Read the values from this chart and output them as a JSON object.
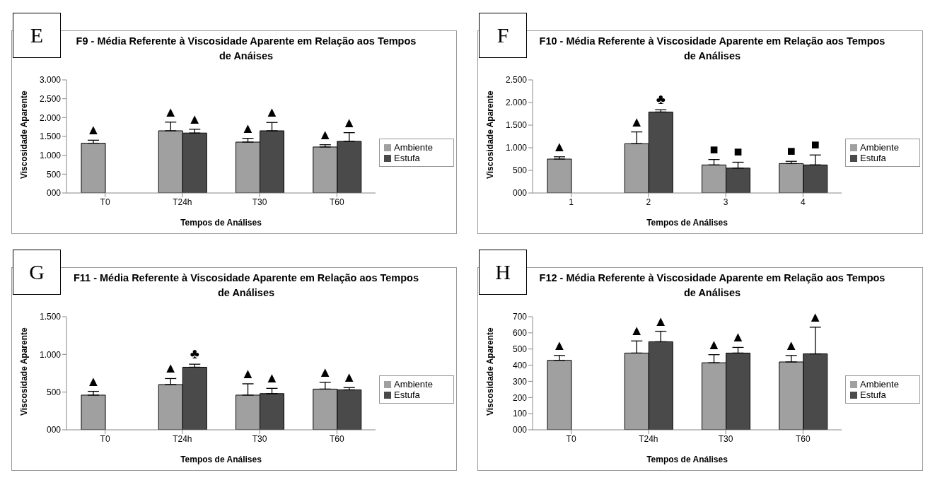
{
  "chart_data": [
    {
      "type": "bar",
      "title": "F9 - Média Referente à Viscosidade Aparente em Relação aos Tempos de Anáises",
      "xlabel": "Tempos de Análises",
      "ylabel": "Viscosidade Aparente",
      "annotations": [
        "E"
      ],
      "categories": [
        "T0",
        "T24h",
        "T30",
        "T60"
      ],
      "series": [
        {
          "name": "Ambiente",
          "color": "#a0a0a0",
          "values": [
            1320,
            1650,
            1350,
            1220
          ],
          "errors": [
            [
              1320,
              1400
            ],
            [
              1650,
              1880
            ],
            [
              1350,
              1450
            ],
            [
              1220,
              1280
            ]
          ],
          "value_labels": [
            "▲",
            "▲",
            "▲",
            "▲"
          ]
        },
        {
          "name": "Estufa",
          "color": "#4a4a4a",
          "values": [
            null,
            1590,
            1650,
            1370
          ],
          "errors": [
            null,
            [
              1590,
              1690
            ],
            [
              1650,
              1870
            ],
            [
              1370,
              1600
            ]
          ],
          "value_labels": [
            null,
            "▲",
            "▲",
            "▲"
          ]
        }
      ],
      "ylim": [
        0,
        3000
      ],
      "yticks": [
        {
          "value": 0,
          "label": "000"
        },
        500,
        {
          "value": 1000,
          "label": "1.000"
        },
        {
          "value": 1500,
          "label": "1.500"
        },
        {
          "value": 2000,
          "label": "2.000"
        },
        {
          "value": 2500,
          "label": "2.500"
        },
        {
          "value": 3000,
          "label": "3.000"
        }
      ],
      "grid": false,
      "legend": "right"
    },
    {
      "type": "bar",
      "title": "F10 - Média Referente à Viscosidade Aparente em Relação aos Tempos de Análises",
      "xlabel": "Tempos de Análises",
      "ylabel": "Viscosidade Aparente",
      "annotations": [
        "F"
      ],
      "categories": [
        "1",
        "2",
        "3",
        "4"
      ],
      "series": [
        {
          "name": "Ambiente",
          "color": "#a0a0a0",
          "values": [
            750,
            1090,
            620,
            650
          ],
          "errors": [
            [
              750,
              800
            ],
            [
              1090,
              1350
            ],
            [
              620,
              740
            ],
            [
              650,
              700
            ]
          ],
          "value_labels": [
            "▲",
            "▲",
            "■",
            "■"
          ]
        },
        {
          "name": "Estufa",
          "color": "#4a4a4a",
          "values": [
            null,
            1790,
            550,
            620
          ],
          "errors": [
            null,
            [
              1790,
              1840
            ],
            [
              550,
              680
            ],
            [
              620,
              840
            ]
          ],
          "value_labels": [
            null,
            "♣",
            "■",
            "■"
          ]
        }
      ],
      "ylim": [
        0,
        2500
      ],
      "yticks": [
        {
          "value": 0,
          "label": "000"
        },
        500,
        {
          "value": 1000,
          "label": "1.000"
        },
        {
          "value": 1500,
          "label": "1.500"
        },
        {
          "value": 2000,
          "label": "2.000"
        },
        {
          "value": 2500,
          "label": "2.500"
        }
      ],
      "grid": false,
      "legend": "right"
    },
    {
      "type": "bar",
      "title": "F11 - Média Referente à Viscosidade Aparente em Relação aos Tempos de Análises",
      "xlabel": "Tempos de Análises",
      "ylabel": "Viscosidade Aparente",
      "annotations": [
        "G"
      ],
      "categories": [
        "T0",
        "T24h",
        "T30",
        "T60"
      ],
      "series": [
        {
          "name": "Ambiente",
          "color": "#a0a0a0",
          "values": [
            460,
            600,
            460,
            540
          ],
          "errors": [
            [
              460,
              510
            ],
            [
              600,
              680
            ],
            [
              460,
              610
            ],
            [
              540,
              630
            ]
          ],
          "value_labels": [
            "▲",
            "▲",
            "▲",
            "▲"
          ]
        },
        {
          "name": "Estufa",
          "color": "#4a4a4a",
          "values": [
            null,
            830,
            480,
            530
          ],
          "errors": [
            null,
            [
              830,
              870
            ],
            [
              480,
              550
            ],
            [
              530,
              560
            ]
          ],
          "value_labels": [
            null,
            "♣",
            "▲",
            "▲"
          ]
        }
      ],
      "ylim": [
        0,
        1500
      ],
      "yticks": [
        {
          "value": 0,
          "label": "000"
        },
        500,
        {
          "value": 1000,
          "label": "1.000"
        },
        {
          "value": 1500,
          "label": "1.500"
        }
      ],
      "grid": false,
      "legend": "right"
    },
    {
      "type": "bar",
      "title": "F12 - Média Referente à Viscosidade Aparente em Relação aos Tempos de Análises",
      "xlabel": "Tempos de Análises",
      "ylabel": "Viscosidade Aparente",
      "annotations": [
        "H"
      ],
      "categories": [
        "T0",
        "T24h",
        "T30",
        "T60"
      ],
      "series": [
        {
          "name": "Ambiente",
          "color": "#a0a0a0",
          "values": [
            430,
            475,
            415,
            420
          ],
          "errors": [
            [
              430,
              460
            ],
            [
              475,
              550
            ],
            [
              415,
              465
            ],
            [
              420,
              460
            ]
          ],
          "value_labels": [
            "▲",
            "▲",
            "▲",
            "▲"
          ]
        },
        {
          "name": "Estufa",
          "color": "#4a4a4a",
          "values": [
            null,
            545,
            475,
            470
          ],
          "errors": [
            null,
            [
              545,
              610
            ],
            [
              475,
              510
            ],
            [
              470,
              635
            ]
          ],
          "value_labels": [
            null,
            "▲",
            "▲",
            "▲"
          ]
        }
      ],
      "ylim": [
        0,
        700
      ],
      "yticks": [
        {
          "value": 0,
          "label": "000"
        },
        100,
        200,
        300,
        400,
        500,
        600,
        700
      ],
      "grid": false,
      "legend": "right"
    }
  ]
}
